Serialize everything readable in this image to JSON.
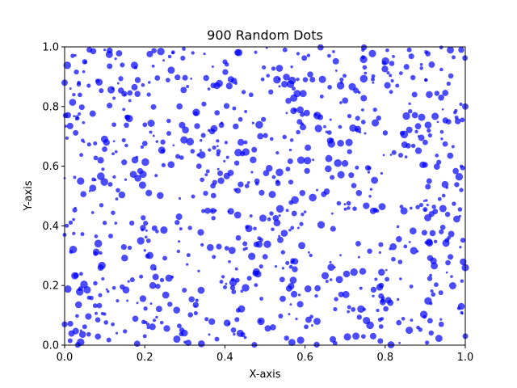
{
  "chart_data": {
    "type": "scatter",
    "title": "900 Random Dots",
    "xlabel": "X-axis",
    "ylabel": "Y-axis",
    "xlim": [
      0,
      1
    ],
    "ylim": [
      0,
      1
    ],
    "x_ticks": [
      "0.0",
      "0.2",
      "0.4",
      "0.6",
      "0.8",
      "1.0"
    ],
    "y_ticks": [
      "0.0",
      "0.2",
      "0.4",
      "0.6",
      "0.8",
      "1.0"
    ],
    "grid": false,
    "legend": "none",
    "marker_color": "#0000ff",
    "marker_alpha": 0.7,
    "point_count": 900,
    "distribution": "uniform random over [0,1] x [0,1] with random marker sizes",
    "sample_points": [
      {
        "x": 0.02,
        "y": 0.97
      },
      {
        "x": 0.05,
        "y": 0.95
      },
      {
        "x": 0.1,
        "y": 0.99
      },
      {
        "x": 0.21,
        "y": 0.84
      },
      {
        "x": 0.27,
        "y": 0.98
      },
      {
        "x": 0.32,
        "y": 0.98
      },
      {
        "x": 0.4,
        "y": 0.95
      },
      {
        "x": 0.55,
        "y": 0.99
      },
      {
        "x": 0.66,
        "y": 0.97
      },
      {
        "x": 0.86,
        "y": 0.99
      },
      {
        "x": 0.99,
        "y": 0.99
      },
      {
        "x": 0.0,
        "y": 0.88
      },
      {
        "x": 0.06,
        "y": 0.87
      },
      {
        "x": 0.12,
        "y": 0.86
      },
      {
        "x": 0.15,
        "y": 0.84
      },
      {
        "x": 0.38,
        "y": 0.87
      },
      {
        "x": 0.53,
        "y": 0.89
      },
      {
        "x": 0.7,
        "y": 0.82
      },
      {
        "x": 0.77,
        "y": 0.88
      },
      {
        "x": 0.83,
        "y": 0.87
      },
      {
        "x": 0.91,
        "y": 0.84
      },
      {
        "x": 1.0,
        "y": 0.8
      },
      {
        "x": 0.09,
        "y": 0.62
      },
      {
        "x": 0.18,
        "y": 0.63
      },
      {
        "x": 0.26,
        "y": 0.71
      },
      {
        "x": 0.44,
        "y": 0.68
      },
      {
        "x": 0.59,
        "y": 0.62
      },
      {
        "x": 0.75,
        "y": 0.71
      },
      {
        "x": 0.9,
        "y": 0.68
      },
      {
        "x": 0.99,
        "y": 0.6
      },
      {
        "x": 0.0,
        "y": 0.56
      },
      {
        "x": 0.04,
        "y": 0.55
      },
      {
        "x": 0.13,
        "y": 0.49
      },
      {
        "x": 0.21,
        "y": 0.51
      },
      {
        "x": 0.37,
        "y": 0.45
      },
      {
        "x": 0.48,
        "y": 0.55
      },
      {
        "x": 0.63,
        "y": 0.52
      },
      {
        "x": 0.77,
        "y": 0.45
      },
      {
        "x": 0.89,
        "y": 0.47
      },
      {
        "x": 0.99,
        "y": 0.52
      },
      {
        "x": 0.0,
        "y": 0.37
      },
      {
        "x": 0.1,
        "y": 0.41
      },
      {
        "x": 0.19,
        "y": 0.35
      },
      {
        "x": 0.29,
        "y": 0.39
      },
      {
        "x": 0.45,
        "y": 0.34
      },
      {
        "x": 0.53,
        "y": 0.41
      },
      {
        "x": 0.67,
        "y": 0.39
      },
      {
        "x": 0.82,
        "y": 0.33
      },
      {
        "x": 0.94,
        "y": 0.38
      },
      {
        "x": 1.0,
        "y": 0.26
      },
      {
        "x": 0.04,
        "y": 0.19
      },
      {
        "x": 0.09,
        "y": 0.26
      },
      {
        "x": 0.22,
        "y": 0.2
      },
      {
        "x": 0.33,
        "y": 0.15
      },
      {
        "x": 0.42,
        "y": 0.22
      },
      {
        "x": 0.56,
        "y": 0.19
      },
      {
        "x": 0.69,
        "y": 0.17
      },
      {
        "x": 0.79,
        "y": 0.2
      },
      {
        "x": 0.92,
        "y": 0.17
      },
      {
        "x": 0.99,
        "y": 0.13
      },
      {
        "x": 0.0,
        "y": 0.07
      },
      {
        "x": 0.04,
        "y": 0.01
      },
      {
        "x": 0.13,
        "y": 0.04
      },
      {
        "x": 0.2,
        "y": 0.03
      },
      {
        "x": 0.3,
        "y": 0.01
      },
      {
        "x": 0.38,
        "y": 0.02
      },
      {
        "x": 0.52,
        "y": 0.06
      },
      {
        "x": 0.63,
        "y": 0.08
      },
      {
        "x": 0.77,
        "y": 0.03
      },
      {
        "x": 0.86,
        "y": 0.05
      },
      {
        "x": 0.94,
        "y": 0.07
      },
      {
        "x": 1.0,
        "y": 0.03
      }
    ]
  }
}
